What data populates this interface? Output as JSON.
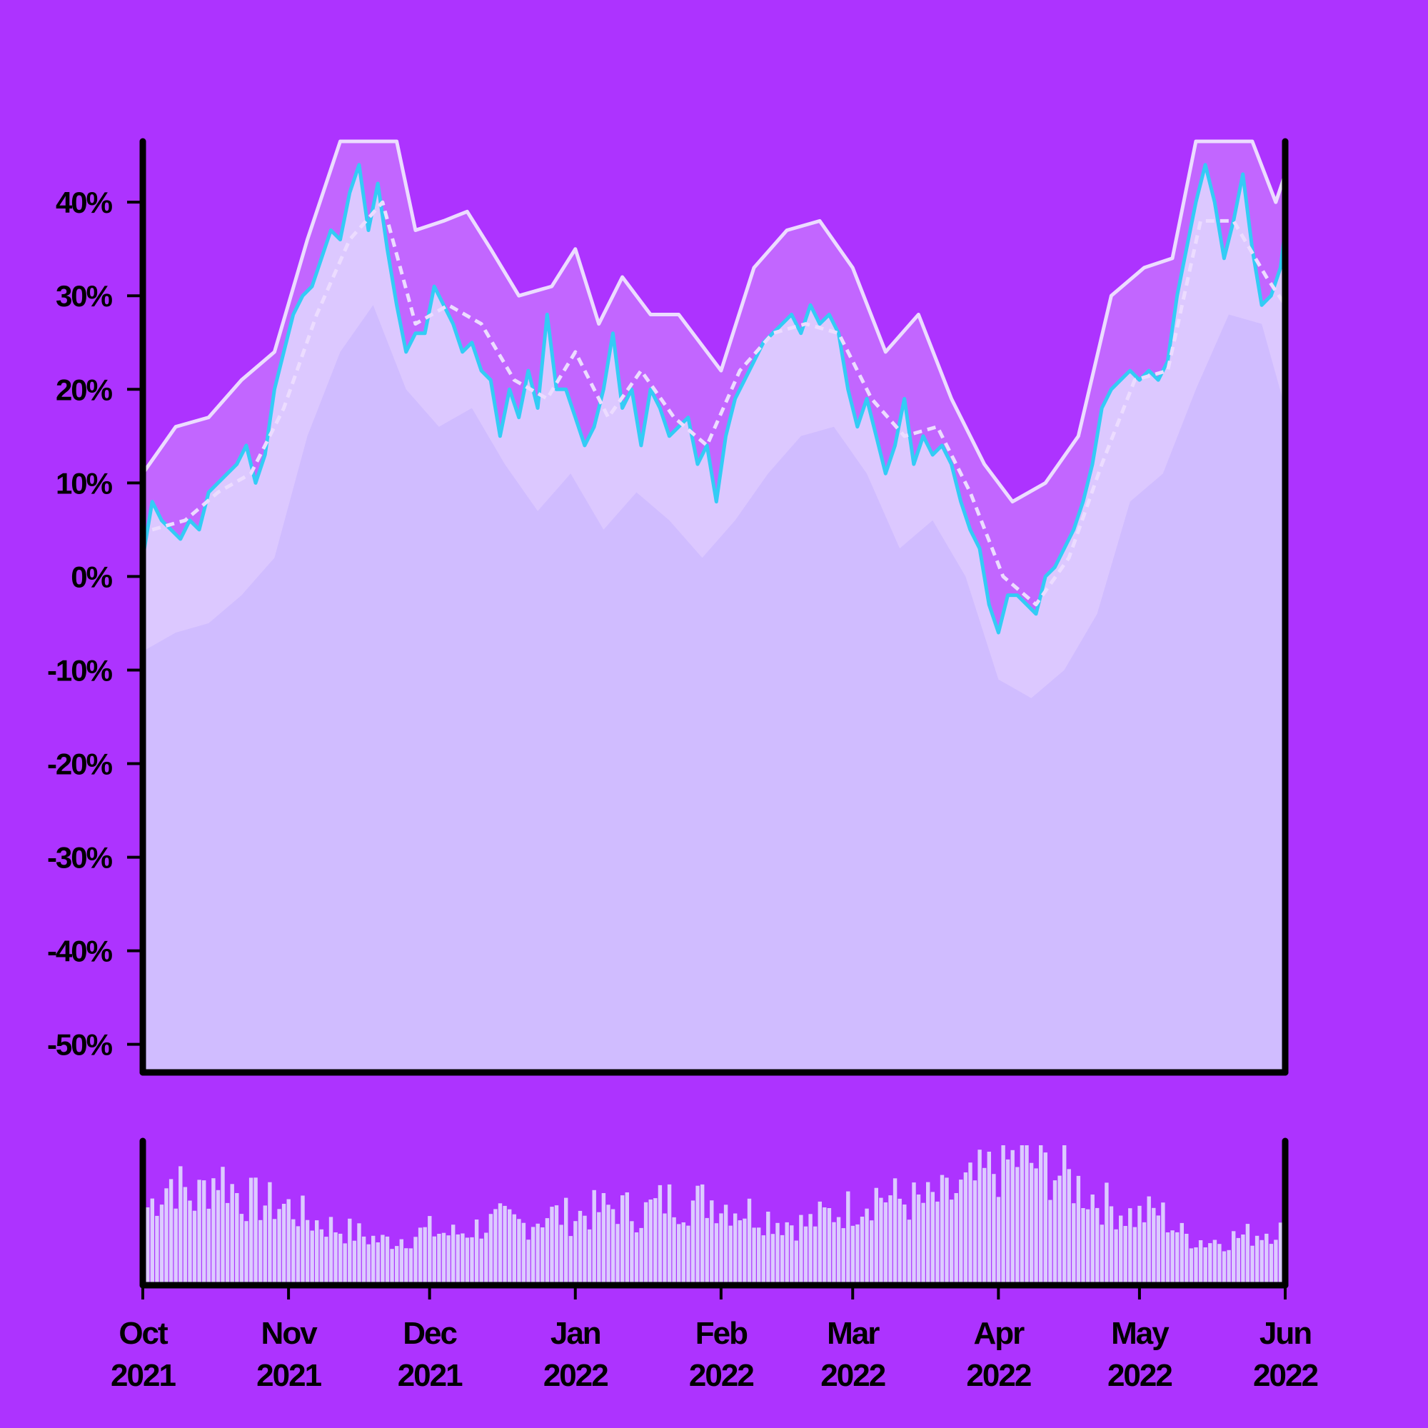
{
  "chart_data": {
    "type": "line",
    "title": "",
    "xlabel": "",
    "ylabel": "",
    "x_range": [
      "2021-10-01",
      "2022-06-01"
    ],
    "ylim": [
      -53,
      46.5
    ],
    "y_ticks": [
      {
        "value": 40,
        "label": "40%"
      },
      {
        "value": 30,
        "label": "30%"
      },
      {
        "value": 20,
        "label": "20%"
      },
      {
        "value": 10,
        "label": "10%"
      },
      {
        "value": 0,
        "label": "0%"
      },
      {
        "value": -10,
        "label": "-10%"
      },
      {
        "value": -20,
        "label": "-20%"
      },
      {
        "value": -30,
        "label": "-30%"
      },
      {
        "value": -40,
        "label": "-40%"
      },
      {
        "value": -50,
        "label": "-50%"
      }
    ],
    "x_ticks": [
      {
        "date": "2021-10-01",
        "month": "Oct",
        "year": "2021"
      },
      {
        "date": "2021-11-01",
        "month": "Nov",
        "year": "2021"
      },
      {
        "date": "2021-12-01",
        "month": "Dec",
        "year": "2021"
      },
      {
        "date": "2022-01-01",
        "month": "Jan",
        "year": "2022"
      },
      {
        "date": "2022-02-01",
        "month": "Feb",
        "year": "2022"
      },
      {
        "date": "2022-03-01",
        "month": "Mar",
        "year": "2022"
      },
      {
        "date": "2022-04-01",
        "month": "Apr",
        "year": "2022"
      },
      {
        "date": "2022-05-01",
        "month": "May",
        "year": "2022"
      },
      {
        "date": "2022-06-01",
        "month": "Jun",
        "year": "2022"
      }
    ],
    "grid": false,
    "legend": "none",
    "colors": {
      "background": "#ad33ff",
      "upper_band": "#c266ff",
      "lower_band": "#dcc8ff",
      "base_area": "#d0bcff",
      "price_line": "#33ccf5",
      "band_line": "#ecdcff",
      "volume_bar": "#dccbff",
      "axis": "#000000"
    },
    "price": [
      {
        "x": "2021-10-01",
        "y": 2
      },
      {
        "x": "2021-10-03",
        "y": 8
      },
      {
        "x": "2021-10-05",
        "y": 6
      },
      {
        "x": "2021-10-07",
        "y": 5
      },
      {
        "x": "2021-10-09",
        "y": 4
      },
      {
        "x": "2021-10-11",
        "y": 6
      },
      {
        "x": "2021-10-13",
        "y": 5
      },
      {
        "x": "2021-10-15",
        "y": 9
      },
      {
        "x": "2021-10-17",
        "y": 10
      },
      {
        "x": "2021-10-19",
        "y": 11
      },
      {
        "x": "2021-10-21",
        "y": 12
      },
      {
        "x": "2021-10-23",
        "y": 14
      },
      {
        "x": "2021-10-25",
        "y": 10
      },
      {
        "x": "2021-10-27",
        "y": 13
      },
      {
        "x": "2021-10-29",
        "y": 20
      },
      {
        "x": "2021-10-31",
        "y": 24
      },
      {
        "x": "2021-11-02",
        "y": 28
      },
      {
        "x": "2021-11-04",
        "y": 30
      },
      {
        "x": "2021-11-06",
        "y": 31
      },
      {
        "x": "2021-11-08",
        "y": 34
      },
      {
        "x": "2021-11-10",
        "y": 37
      },
      {
        "x": "2021-11-12",
        "y": 36
      },
      {
        "x": "2021-11-14",
        "y": 41
      },
      {
        "x": "2021-11-16",
        "y": 44
      },
      {
        "x": "2021-11-18",
        "y": 37
      },
      {
        "x": "2021-11-20",
        "y": 42
      },
      {
        "x": "2021-11-22",
        "y": 35
      },
      {
        "x": "2021-11-24",
        "y": 29
      },
      {
        "x": "2021-11-26",
        "y": 24
      },
      {
        "x": "2021-11-28",
        "y": 26
      },
      {
        "x": "2021-11-30",
        "y": 26
      },
      {
        "x": "2021-12-02",
        "y": 31
      },
      {
        "x": "2021-12-04",
        "y": 29
      },
      {
        "x": "2021-12-06",
        "y": 27
      },
      {
        "x": "2021-12-08",
        "y": 24
      },
      {
        "x": "2021-12-10",
        "y": 25
      },
      {
        "x": "2021-12-12",
        "y": 22
      },
      {
        "x": "2021-12-14",
        "y": 21
      },
      {
        "x": "2021-12-16",
        "y": 15
      },
      {
        "x": "2021-12-18",
        "y": 20
      },
      {
        "x": "2021-12-20",
        "y": 17
      },
      {
        "x": "2021-12-22",
        "y": 22
      },
      {
        "x": "2021-12-24",
        "y": 18
      },
      {
        "x": "2021-12-26",
        "y": 28
      },
      {
        "x": "2021-12-28",
        "y": 20
      },
      {
        "x": "2021-12-30",
        "y": 20
      },
      {
        "x": "2022-01-01",
        "y": 17
      },
      {
        "x": "2022-01-03",
        "y": 14
      },
      {
        "x": "2022-01-05",
        "y": 16
      },
      {
        "x": "2022-01-07",
        "y": 20
      },
      {
        "x": "2022-01-09",
        "y": 26
      },
      {
        "x": "2022-01-11",
        "y": 18
      },
      {
        "x": "2022-01-13",
        "y": 20
      },
      {
        "x": "2022-01-15",
        "y": 14
      },
      {
        "x": "2022-01-17",
        "y": 20
      },
      {
        "x": "2022-01-19",
        "y": 18
      },
      {
        "x": "2022-01-21",
        "y": 15
      },
      {
        "x": "2022-01-23",
        "y": 16
      },
      {
        "x": "2022-01-25",
        "y": 17
      },
      {
        "x": "2022-01-27",
        "y": 12
      },
      {
        "x": "2022-01-29",
        "y": 14
      },
      {
        "x": "2022-01-31",
        "y": 8
      },
      {
        "x": "2022-02-02",
        "y": 15
      },
      {
        "x": "2022-02-04",
        "y": 19
      },
      {
        "x": "2022-02-06",
        "y": 21
      },
      {
        "x": "2022-02-08",
        "y": 23
      },
      {
        "x": "2022-02-10",
        "y": 25
      },
      {
        "x": "2022-02-12",
        "y": 26
      },
      {
        "x": "2022-02-14",
        "y": 27
      },
      {
        "x": "2022-02-16",
        "y": 28
      },
      {
        "x": "2022-02-18",
        "y": 26
      },
      {
        "x": "2022-02-20",
        "y": 29
      },
      {
        "x": "2022-02-22",
        "y": 27
      },
      {
        "x": "2022-02-24",
        "y": 28
      },
      {
        "x": "2022-02-26",
        "y": 26
      },
      {
        "x": "2022-02-28",
        "y": 20
      },
      {
        "x": "2022-03-02",
        "y": 16
      },
      {
        "x": "2022-03-04",
        "y": 19
      },
      {
        "x": "2022-03-06",
        "y": 15
      },
      {
        "x": "2022-03-08",
        "y": 11
      },
      {
        "x": "2022-03-10",
        "y": 14
      },
      {
        "x": "2022-03-12",
        "y": 19
      },
      {
        "x": "2022-03-14",
        "y": 12
      },
      {
        "x": "2022-03-16",
        "y": 15
      },
      {
        "x": "2022-03-18",
        "y": 13
      },
      {
        "x": "2022-03-20",
        "y": 14
      },
      {
        "x": "2022-03-22",
        "y": 12
      },
      {
        "x": "2022-03-24",
        "y": 8
      },
      {
        "x": "2022-03-26",
        "y": 5
      },
      {
        "x": "2022-03-28",
        "y": 3
      },
      {
        "x": "2022-03-30",
        "y": -3
      },
      {
        "x": "2022-04-01",
        "y": -6
      },
      {
        "x": "2022-04-03",
        "y": -2
      },
      {
        "x": "2022-04-05",
        "y": -2
      },
      {
        "x": "2022-04-07",
        "y": -3
      },
      {
        "x": "2022-04-09",
        "y": -4
      },
      {
        "x": "2022-04-11",
        "y": 0
      },
      {
        "x": "2022-04-13",
        "y": 1
      },
      {
        "x": "2022-04-15",
        "y": 3
      },
      {
        "x": "2022-04-17",
        "y": 5
      },
      {
        "x": "2022-04-19",
        "y": 8
      },
      {
        "x": "2022-04-21",
        "y": 12
      },
      {
        "x": "2022-04-23",
        "y": 18
      },
      {
        "x": "2022-04-25",
        "y": 20
      },
      {
        "x": "2022-04-27",
        "y": 21
      },
      {
        "x": "2022-04-29",
        "y": 22
      },
      {
        "x": "2022-05-01",
        "y": 21
      },
      {
        "x": "2022-05-03",
        "y": 22
      },
      {
        "x": "2022-05-05",
        "y": 21
      },
      {
        "x": "2022-05-07",
        "y": 23
      },
      {
        "x": "2022-05-09",
        "y": 30
      },
      {
        "x": "2022-05-11",
        "y": 35
      },
      {
        "x": "2022-05-13",
        "y": 40
      },
      {
        "x": "2022-05-15",
        "y": 44
      },
      {
        "x": "2022-05-17",
        "y": 40
      },
      {
        "x": "2022-05-19",
        "y": 34
      },
      {
        "x": "2022-05-21",
        "y": 38
      },
      {
        "x": "2022-05-23",
        "y": 43
      },
      {
        "x": "2022-05-25",
        "y": 35
      },
      {
        "x": "2022-05-27",
        "y": 29
      },
      {
        "x": "2022-05-29",
        "y": 30
      },
      {
        "x": "2022-05-31",
        "y": 33
      },
      {
        "x": "2022-06-01",
        "y": 37
      }
    ],
    "band_upper": [
      {
        "x": "2021-10-01",
        "y": 11
      },
      {
        "x": "2021-10-08",
        "y": 16
      },
      {
        "x": "2021-10-15",
        "y": 17
      },
      {
        "x": "2021-10-22",
        "y": 21
      },
      {
        "x": "2021-10-29",
        "y": 24
      },
      {
        "x": "2021-11-05",
        "y": 36
      },
      {
        "x": "2021-11-12",
        "y": 46.5
      },
      {
        "x": "2021-11-19",
        "y": 46.5
      },
      {
        "x": "2021-11-24",
        "y": 46.5
      },
      {
        "x": "2021-11-28",
        "y": 37
      },
      {
        "x": "2021-12-04",
        "y": 38
      },
      {
        "x": "2021-12-09",
        "y": 39
      },
      {
        "x": "2021-12-14",
        "y": 35
      },
      {
        "x": "2021-12-20",
        "y": 30
      },
      {
        "x": "2021-12-27",
        "y": 31
      },
      {
        "x": "2022-01-01",
        "y": 35
      },
      {
        "x": "2022-01-06",
        "y": 27
      },
      {
        "x": "2022-01-11",
        "y": 32
      },
      {
        "x": "2022-01-17",
        "y": 28
      },
      {
        "x": "2022-01-23",
        "y": 28
      },
      {
        "x": "2022-02-01",
        "y": 22
      },
      {
        "x": "2022-02-08",
        "y": 33
      },
      {
        "x": "2022-02-15",
        "y": 37
      },
      {
        "x": "2022-02-22",
        "y": 38
      },
      {
        "x": "2022-03-01",
        "y": 33
      },
      {
        "x": "2022-03-08",
        "y": 24
      },
      {
        "x": "2022-03-15",
        "y": 28
      },
      {
        "x": "2022-03-22",
        "y": 19
      },
      {
        "x": "2022-03-29",
        "y": 12
      },
      {
        "x": "2022-04-04",
        "y": 8
      },
      {
        "x": "2022-04-11",
        "y": 10
      },
      {
        "x": "2022-04-18",
        "y": 15
      },
      {
        "x": "2022-04-25",
        "y": 30
      },
      {
        "x": "2022-05-02",
        "y": 33
      },
      {
        "x": "2022-05-08",
        "y": 34
      },
      {
        "x": "2022-05-13",
        "y": 46.5
      },
      {
        "x": "2022-05-20",
        "y": 46.5
      },
      {
        "x": "2022-05-25",
        "y": 46.5
      },
      {
        "x": "2022-05-30",
        "y": 40
      },
      {
        "x": "2022-06-01",
        "y": 43
      }
    ],
    "band_middle": [
      {
        "x": "2021-10-03",
        "y": 5
      },
      {
        "x": "2021-10-10",
        "y": 6
      },
      {
        "x": "2021-10-17",
        "y": 9
      },
      {
        "x": "2021-10-24",
        "y": 11
      },
      {
        "x": "2021-10-31",
        "y": 18
      },
      {
        "x": "2021-11-07",
        "y": 28
      },
      {
        "x": "2021-11-14",
        "y": 36
      },
      {
        "x": "2021-11-21",
        "y": 40
      },
      {
        "x": "2021-11-28",
        "y": 27
      },
      {
        "x": "2021-12-05",
        "y": 29
      },
      {
        "x": "2021-12-12",
        "y": 27
      },
      {
        "x": "2021-12-19",
        "y": 21
      },
      {
        "x": "2021-12-26",
        "y": 19
      },
      {
        "x": "2022-01-01",
        "y": 24
      },
      {
        "x": "2022-01-08",
        "y": 17
      },
      {
        "x": "2022-01-15",
        "y": 22
      },
      {
        "x": "2022-01-22",
        "y": 17
      },
      {
        "x": "2022-01-29",
        "y": 14
      },
      {
        "x": "2022-02-05",
        "y": 22
      },
      {
        "x": "2022-02-12",
        "y": 26
      },
      {
        "x": "2022-02-19",
        "y": 27
      },
      {
        "x": "2022-02-26",
        "y": 26
      },
      {
        "x": "2022-03-05",
        "y": 19
      },
      {
        "x": "2022-03-12",
        "y": 15
      },
      {
        "x": "2022-03-19",
        "y": 16
      },
      {
        "x": "2022-03-26",
        "y": 9
      },
      {
        "x": "2022-04-02",
        "y": 0
      },
      {
        "x": "2022-04-09",
        "y": -3
      },
      {
        "x": "2022-04-16",
        "y": 2
      },
      {
        "x": "2022-04-23",
        "y": 12
      },
      {
        "x": "2022-04-30",
        "y": 21
      },
      {
        "x": "2022-05-07",
        "y": 22
      },
      {
        "x": "2022-05-14",
        "y": 38
      },
      {
        "x": "2022-05-21",
        "y": 38
      },
      {
        "x": "2022-05-28",
        "y": 32
      },
      {
        "x": "2022-06-01",
        "y": 29
      }
    ],
    "band_lower": [
      {
        "x": "2021-10-01",
        "y": -8
      },
      {
        "x": "2021-10-08",
        "y": -6
      },
      {
        "x": "2021-10-15",
        "y": -5
      },
      {
        "x": "2021-10-22",
        "y": -2
      },
      {
        "x": "2021-10-29",
        "y": 2
      },
      {
        "x": "2021-11-05",
        "y": 15
      },
      {
        "x": "2021-11-12",
        "y": 24
      },
      {
        "x": "2021-11-19",
        "y": 29
      },
      {
        "x": "2021-11-26",
        "y": 20
      },
      {
        "x": "2021-12-03",
        "y": 16
      },
      {
        "x": "2021-12-10",
        "y": 18
      },
      {
        "x": "2021-12-17",
        "y": 12
      },
      {
        "x": "2021-12-24",
        "y": 7
      },
      {
        "x": "2021-12-31",
        "y": 11
      },
      {
        "x": "2022-01-07",
        "y": 5
      },
      {
        "x": "2022-01-14",
        "y": 9
      },
      {
        "x": "2022-01-21",
        "y": 6
      },
      {
        "x": "2022-01-28",
        "y": 2
      },
      {
        "x": "2022-02-04",
        "y": 6
      },
      {
        "x": "2022-02-11",
        "y": 11
      },
      {
        "x": "2022-02-18",
        "y": 15
      },
      {
        "x": "2022-02-25",
        "y": 16
      },
      {
        "x": "2022-03-04",
        "y": 11
      },
      {
        "x": "2022-03-11",
        "y": 3
      },
      {
        "x": "2022-03-18",
        "y": 6
      },
      {
        "x": "2022-03-25",
        "y": 0
      },
      {
        "x": "2022-04-01",
        "y": -11
      },
      {
        "x": "2022-04-08",
        "y": -13
      },
      {
        "x": "2022-04-15",
        "y": -10
      },
      {
        "x": "2022-04-22",
        "y": -4
      },
      {
        "x": "2022-04-29",
        "y": 8
      },
      {
        "x": "2022-05-06",
        "y": 11
      },
      {
        "x": "2022-05-13",
        "y": 20
      },
      {
        "x": "2022-05-20",
        "y": 28
      },
      {
        "x": "2022-05-27",
        "y": 27
      },
      {
        "x": "2022-06-01",
        "y": 18
      }
    ],
    "volume": [
      {
        "x": "2021-10-01",
        "y": 0.55
      },
      {
        "x": "2021-10-06",
        "y": 0.75
      },
      {
        "x": "2021-10-11",
        "y": 0.6
      },
      {
        "x": "2021-10-16",
        "y": 0.8
      },
      {
        "x": "2021-10-21",
        "y": 0.62
      },
      {
        "x": "2021-10-26",
        "y": 0.58
      },
      {
        "x": "2021-10-31",
        "y": 0.55
      },
      {
        "x": "2021-11-05",
        "y": 0.45
      },
      {
        "x": "2021-11-10",
        "y": 0.4
      },
      {
        "x": "2021-11-15",
        "y": 0.35
      },
      {
        "x": "2021-11-20",
        "y": 0.3
      },
      {
        "x": "2021-11-25",
        "y": 0.33
      },
      {
        "x": "2021-11-30",
        "y": 0.38
      },
      {
        "x": "2021-12-05",
        "y": 0.35
      },
      {
        "x": "2021-12-10",
        "y": 0.4
      },
      {
        "x": "2021-12-15",
        "y": 0.45
      },
      {
        "x": "2021-12-20",
        "y": 0.42
      },
      {
        "x": "2021-12-25",
        "y": 0.5
      },
      {
        "x": "2021-12-30",
        "y": 0.48
      },
      {
        "x": "2022-01-04",
        "y": 0.52
      },
      {
        "x": "2022-01-09",
        "y": 0.55
      },
      {
        "x": "2022-01-14",
        "y": 0.5
      },
      {
        "x": "2022-01-19",
        "y": 0.6
      },
      {
        "x": "2022-01-24",
        "y": 0.58
      },
      {
        "x": "2022-01-29",
        "y": 0.6
      },
      {
        "x": "2022-02-03",
        "y": 0.55
      },
      {
        "x": "2022-02-08",
        "y": 0.5
      },
      {
        "x": "2022-02-13",
        "y": 0.45
      },
      {
        "x": "2022-02-18",
        "y": 0.42
      },
      {
        "x": "2022-02-23",
        "y": 0.5
      },
      {
        "x": "2022-02-28",
        "y": 0.55
      },
      {
        "x": "2022-03-05",
        "y": 0.65
      },
      {
        "x": "2022-03-10",
        "y": 0.6
      },
      {
        "x": "2022-03-15",
        "y": 0.58
      },
      {
        "x": "2022-03-20",
        "y": 0.62
      },
      {
        "x": "2022-03-25",
        "y": 0.7
      },
      {
        "x": "2022-03-30",
        "y": 0.82
      },
      {
        "x": "2022-04-04",
        "y": 0.9
      },
      {
        "x": "2022-04-09",
        "y": 0.85
      },
      {
        "x": "2022-04-14",
        "y": 0.78
      },
      {
        "x": "2022-04-19",
        "y": 0.65
      },
      {
        "x": "2022-04-24",
        "y": 0.55
      },
      {
        "x": "2022-04-29",
        "y": 0.48
      },
      {
        "x": "2022-05-04",
        "y": 0.52
      },
      {
        "x": "2022-05-09",
        "y": 0.35
      },
      {
        "x": "2022-05-14",
        "y": 0.3
      },
      {
        "x": "2022-05-19",
        "y": 0.32
      },
      {
        "x": "2022-05-24",
        "y": 0.35
      },
      {
        "x": "2022-05-29",
        "y": 0.4
      },
      {
        "x": "2022-06-01",
        "y": 0.35
      }
    ]
  }
}
